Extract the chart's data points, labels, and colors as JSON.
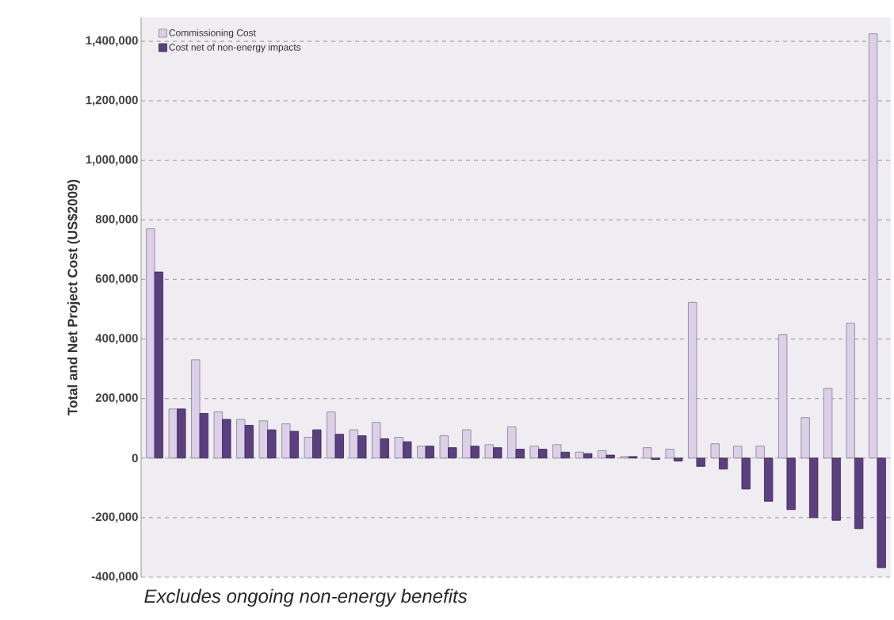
{
  "chart_data": {
    "type": "bar",
    "ylabel": "Total and Net Project Cost (US$2009)",
    "annotations": [
      "Excludes ongoing non-energy benefits"
    ],
    "categories": [
      null,
      null,
      null,
      null,
      null,
      null,
      null,
      null,
      null,
      null,
      null,
      null,
      null,
      null,
      null,
      null,
      null,
      null,
      null,
      null,
      null,
      null,
      null,
      null,
      null,
      null,
      null,
      null,
      null,
      null,
      null,
      null,
      null
    ],
    "series": [
      {
        "name": "Commissioning Cost",
        "color": "#dcd0e8",
        "values": [
          770000,
          165000,
          330000,
          155000,
          130000,
          125000,
          115000,
          70000,
          155000,
          95000,
          120000,
          70000,
          40000,
          75000,
          95000,
          45000,
          105000,
          40000,
          45000,
          20000,
          25000,
          5000,
          35000,
          30000,
          523000,
          48000,
          40000,
          40000,
          415000,
          136000,
          234000,
          453000,
          1425000
        ]
      },
      {
        "name": "Cost net of non-energy impacts",
        "color": "#5c3f80",
        "values": [
          625000,
          165000,
          150000,
          130000,
          110000,
          95000,
          90000,
          95000,
          80000,
          75000,
          65000,
          55000,
          40000,
          35000,
          40000,
          35000,
          30000,
          30000,
          20000,
          15000,
          10000,
          5000,
          -5000,
          -10000,
          -28000,
          -37000,
          -104000,
          -145000,
          -173000,
          -200000,
          -209000,
          -237000,
          -368000
        ]
      }
    ],
    "ylim": [
      -400000,
      1480000
    ],
    "yticks": [
      {
        "value": -400000,
        "label": "-400,000"
      },
      {
        "value": -200000,
        "label": "-200,000"
      },
      {
        "value": 0,
        "label": "0"
      },
      {
        "value": 200000,
        "label": "200,000"
      },
      {
        "value": 400000,
        "label": "400,000"
      },
      {
        "value": 600000,
        "label": "600,000"
      },
      {
        "value": 800000,
        "label": "800,000"
      },
      {
        "value": 1000000,
        "label": "1,000,000"
      },
      {
        "value": 1200000,
        "label": "1,200,000"
      },
      {
        "value": 1400000,
        "label": "1,400,000"
      }
    ],
    "grid": "y",
    "legend": "top left"
  }
}
